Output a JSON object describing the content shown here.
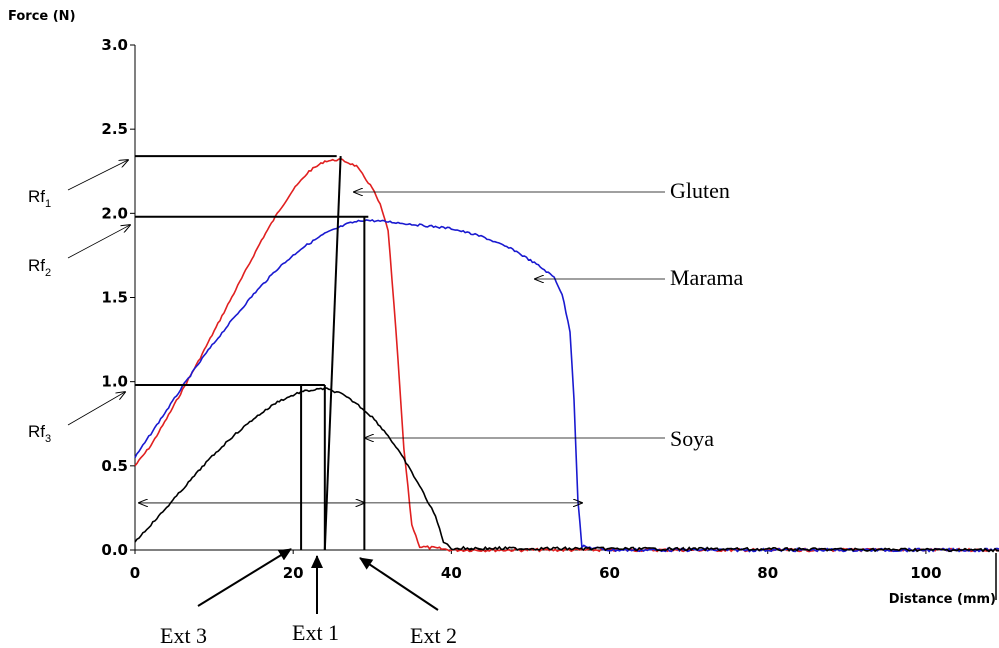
{
  "chart_data": {
    "type": "line",
    "ylabel": "Force (N)",
    "xlabel": "Distance (mm)",
    "xlim": [
      0,
      110
    ],
    "ylim": [
      0,
      3.0
    ],
    "x_ticks": [
      0,
      20,
      40,
      60,
      80,
      100
    ],
    "y_ticks": [
      0.0,
      0.5,
      1.0,
      1.5,
      2.0,
      2.5,
      3.0
    ],
    "x_tick_labels": [
      "0",
      "20",
      "40",
      "60",
      "80",
      "100"
    ],
    "y_tick_labels": [
      "0.0",
      "0.5",
      "1.0",
      "1.5",
      "2.0",
      "2.5",
      "3.0"
    ],
    "grid": false,
    "series": [
      {
        "name": "Gluten",
        "color": "#e02020",
        "points": [
          [
            0,
            0.5
          ],
          [
            2,
            0.62
          ],
          [
            4,
            0.78
          ],
          [
            6,
            0.95
          ],
          [
            8,
            1.12
          ],
          [
            10,
            1.3
          ],
          [
            12,
            1.48
          ],
          [
            14,
            1.66
          ],
          [
            16,
            1.84
          ],
          [
            18,
            2.0
          ],
          [
            20,
            2.14
          ],
          [
            22,
            2.25
          ],
          [
            24,
            2.31
          ],
          [
            26,
            2.32
          ],
          [
            28,
            2.28
          ],
          [
            30,
            2.15
          ],
          [
            31,
            2.05
          ],
          [
            32,
            1.9
          ],
          [
            33,
            1.3
          ],
          [
            34,
            0.6
          ],
          [
            35,
            0.15
          ],
          [
            36,
            0.02
          ],
          [
            40,
            0.0
          ],
          [
            110,
            0.0
          ]
        ]
      },
      {
        "name": "Marama",
        "color": "#1a1ad0",
        "points": [
          [
            0,
            0.55
          ],
          [
            3,
            0.76
          ],
          [
            6,
            0.97
          ],
          [
            9,
            1.17
          ],
          [
            12,
            1.35
          ],
          [
            15,
            1.52
          ],
          [
            18,
            1.67
          ],
          [
            21,
            1.79
          ],
          [
            24,
            1.88
          ],
          [
            27,
            1.94
          ],
          [
            29,
            1.96
          ],
          [
            32,
            1.95
          ],
          [
            36,
            1.93
          ],
          [
            40,
            1.91
          ],
          [
            44,
            1.86
          ],
          [
            48,
            1.78
          ],
          [
            51,
            1.69
          ],
          [
            53,
            1.62
          ],
          [
            54,
            1.52
          ],
          [
            55,
            1.3
          ],
          [
            55.5,
            0.9
          ],
          [
            56,
            0.3
          ],
          [
            56.5,
            0.02
          ],
          [
            60,
            0.0
          ],
          [
            110,
            0.0
          ]
        ]
      },
      {
        "name": "Soya",
        "color": "#000000",
        "points": [
          [
            0,
            0.05
          ],
          [
            3,
            0.2
          ],
          [
            6,
            0.36
          ],
          [
            9,
            0.52
          ],
          [
            12,
            0.66
          ],
          [
            15,
            0.78
          ],
          [
            18,
            0.88
          ],
          [
            21,
            0.94
          ],
          [
            24,
            0.96
          ],
          [
            26,
            0.93
          ],
          [
            28,
            0.87
          ],
          [
            30,
            0.79
          ],
          [
            32,
            0.68
          ],
          [
            34,
            0.54
          ],
          [
            36,
            0.38
          ],
          [
            38,
            0.2
          ],
          [
            39,
            0.05
          ],
          [
            40,
            0.01
          ],
          [
            110,
            0.0
          ]
        ]
      }
    ],
    "callouts": {
      "gluten": "Gluten",
      "marama": "Marama",
      "soya": "Soya",
      "rf1": "Rf",
      "rf1_sub": "1",
      "rf2": "Rf",
      "rf2_sub": "2",
      "rf3": "Rf",
      "rf3_sub": "3",
      "ext1": "Ext 1",
      "ext2": "Ext 2",
      "ext3": "Ext 3"
    },
    "reference_lines": {
      "rf1_force": 2.34,
      "rf2_force": 1.98,
      "rf3_force": 0.98,
      "ext1_distance": 24,
      "ext2_distance": 29,
      "ext3_distance": 21,
      "span_start": 0,
      "span_mid": 29,
      "span_end": 56.5
    }
  }
}
